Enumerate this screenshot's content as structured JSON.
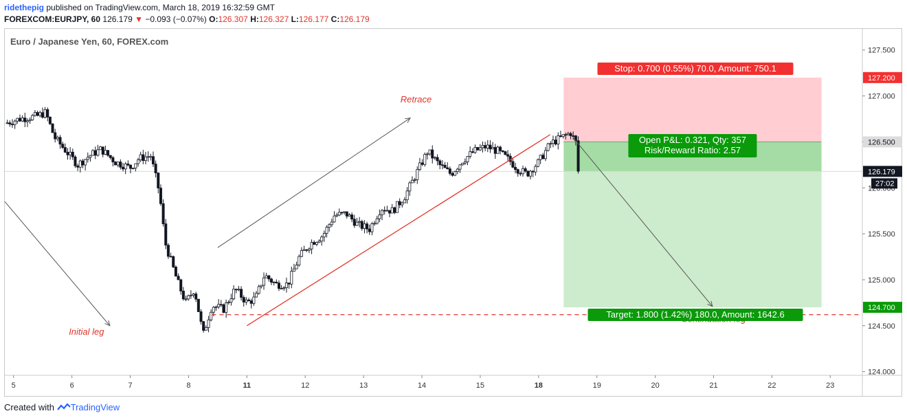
{
  "header": {
    "user": "ridethepig",
    "published": "published on TradingView.com, March 18, 2019 16:32:59 GMT",
    "symbol": "FOREXCOM:EURJPY, 60",
    "last": "126.179",
    "change_arrow": "▼",
    "change": "−0.093 (−0.07%)",
    "o_label": "O:",
    "o": "126.307",
    "h_label": "H:",
    "h": "126.327",
    "l_label": "L:",
    "l": "126.177",
    "c_label": "C:",
    "c": "126.179"
  },
  "pane_title": "Euro / Japanese Yen, 60, FOREX.com",
  "footer": {
    "created_with": "Created with",
    "brand": "TradingView"
  },
  "chart_data": {
    "type": "candlestick",
    "symbol": "EURJPY",
    "timeframe": "60",
    "x_ticks": [
      {
        "label": "5",
        "x": 5.0,
        "bold": false
      },
      {
        "label": "6",
        "x": 6.0,
        "bold": false
      },
      {
        "label": "7",
        "x": 7.0,
        "bold": false
      },
      {
        "label": "8",
        "x": 8.0,
        "bold": false
      },
      {
        "label": "11",
        "x": 9.0,
        "bold": true
      },
      {
        "label": "12",
        "x": 10.0,
        "bold": false
      },
      {
        "label": "13",
        "x": 11.0,
        "bold": false
      },
      {
        "label": "14",
        "x": 12.0,
        "bold": false
      },
      {
        "label": "15",
        "x": 13.0,
        "bold": false
      },
      {
        "label": "18",
        "x": 14.0,
        "bold": true
      },
      {
        "label": "19",
        "x": 15.0,
        "bold": false
      },
      {
        "label": "20",
        "x": 16.0,
        "bold": false
      },
      {
        "label": "21",
        "x": 17.0,
        "bold": false
      },
      {
        "label": "22",
        "x": 18.0,
        "bold": false
      },
      {
        "label": "23",
        "x": 19.0,
        "bold": false
      }
    ],
    "y_ticks": [
      "127.500",
      "127.000",
      "126.500",
      "126.000",
      "125.500",
      "125.000",
      "124.500",
      "124.000"
    ],
    "ylim": [
      123.96,
      127.73
    ],
    "xlim": [
      4.85,
      19.55
    ],
    "price_path": [
      [
        4.85,
        126.7
      ],
      [
        5.1,
        126.75
      ],
      [
        5.4,
        126.78
      ],
      [
        5.55,
        126.82
      ],
      [
        5.7,
        126.55
      ],
      [
        5.9,
        126.4
      ],
      [
        6.1,
        126.25
      ],
      [
        6.3,
        126.35
      ],
      [
        6.5,
        126.42
      ],
      [
        6.75,
        126.28
      ],
      [
        7.0,
        126.22
      ],
      [
        7.15,
        126.32
      ],
      [
        7.35,
        126.35
      ],
      [
        7.5,
        125.95
      ],
      [
        7.6,
        125.4
      ],
      [
        7.8,
        125.0
      ],
      [
        7.95,
        124.75
      ],
      [
        8.1,
        124.9
      ],
      [
        8.25,
        124.4
      ],
      [
        8.4,
        124.72
      ],
      [
        8.6,
        124.68
      ],
      [
        8.8,
        124.9
      ],
      [
        9.0,
        124.75
      ],
      [
        9.15,
        124.8
      ],
      [
        9.3,
        125.05
      ],
      [
        9.5,
        124.95
      ],
      [
        9.7,
        124.95
      ],
      [
        9.9,
        125.25
      ],
      [
        10.1,
        125.4
      ],
      [
        10.3,
        125.48
      ],
      [
        10.5,
        125.7
      ],
      [
        10.7,
        125.72
      ],
      [
        10.9,
        125.6
      ],
      [
        11.1,
        125.55
      ],
      [
        11.3,
        125.78
      ],
      [
        11.5,
        125.75
      ],
      [
        11.7,
        125.9
      ],
      [
        11.9,
        126.15
      ],
      [
        12.1,
        126.4
      ],
      [
        12.3,
        126.25
      ],
      [
        12.5,
        126.15
      ],
      [
        12.7,
        126.3
      ],
      [
        12.9,
        126.4
      ],
      [
        13.1,
        126.45
      ],
      [
        13.3,
        126.4
      ],
      [
        13.5,
        126.3
      ],
      [
        13.65,
        126.2
      ],
      [
        13.8,
        126.15
      ],
      [
        14.0,
        126.28
      ],
      [
        14.2,
        126.48
      ],
      [
        14.4,
        126.55
      ],
      [
        14.55,
        126.6
      ],
      [
        14.65,
        126.48
      ],
      [
        14.68,
        126.18
      ]
    ],
    "trend_line": {
      "from": [
        9.0,
        124.5
      ],
      "to": [
        14.2,
        126.58
      ],
      "color": "#e0352b"
    },
    "arrows": [
      {
        "from": [
          4.85,
          125.85
        ],
        "to": [
          6.65,
          124.5
        ],
        "label": ""
      },
      {
        "from": [
          8.5,
          125.35
        ],
        "to": [
          11.8,
          126.76
        ],
        "label": ""
      },
      {
        "from": [
          14.6,
          126.54
        ],
        "to": [
          16.98,
          124.71
        ],
        "label": ""
      }
    ],
    "annotations": [
      {
        "text": "Initial leg",
        "at": [
          6.25,
          124.4
        ],
        "color": "#e0352b"
      },
      {
        "text": "Retrace",
        "at": [
          11.9,
          126.93
        ],
        "color": "#e0352b"
      },
      {
        "text": "Continuation leg",
        "at": [
          17.0,
          124.54
        ],
        "color": "#e0352b"
      }
    ],
    "position": {
      "entry": 126.5,
      "stop": 127.2,
      "target": 124.7,
      "current": 126.179,
      "x_start": 14.43,
      "x_end": 18.85,
      "stop_label": "Stop: 0.700 (0.55%) 70.0, Amount: 750.1",
      "pnl_label": "Open P&L: 0.321, Qty: 357",
      "rr_label": "Risk/Reward Ratio: 2.57",
      "target_label": "Target: 1.800 (1.42%) 180.0, Amount: 1642.6",
      "stop_price_label": "127.200",
      "entry_price_label": "126.500",
      "target_price_label": "124.700"
    },
    "dashed_level": {
      "y": 124.62,
      "from_x": 8.4,
      "color": "#e0352b"
    },
    "current_price_label": "126.179",
    "countdown_label": "27:02",
    "colors": {
      "stop_zone": "#ffcdd2",
      "profit_zone": "#a5dca5",
      "target_zone": "#cdebcd",
      "stop_badge": "#f23030",
      "green_badge": "#0a9a0a",
      "candle": "#131722"
    }
  }
}
